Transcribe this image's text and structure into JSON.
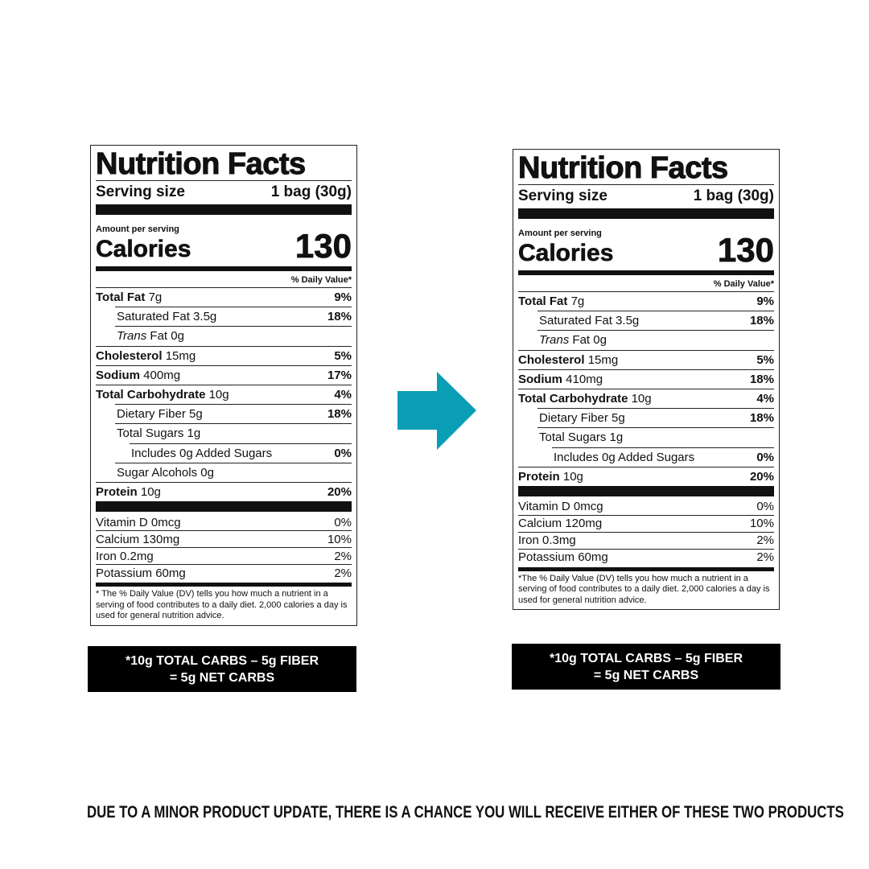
{
  "labels": [
    {
      "title": "Nutrition Facts",
      "serving_label": "Serving size",
      "serving_value": "1 bag (30g)",
      "amount_label": "Amount per serving",
      "calories_label": "Calories",
      "calories_value": "130",
      "dv_header": "% Daily Value*",
      "nutrients": [
        {
          "name": "Total Fat",
          "amount": "7g",
          "dv": "9%"
        },
        {
          "name": "Saturated Fat 3.5g",
          "dv": "18%"
        },
        {
          "name": "Trans",
          "amount": "Fat 0g"
        },
        {
          "name": "Cholesterol",
          "amount": "15mg",
          "dv": "5%"
        },
        {
          "name": "Sodium",
          "amount": "400mg",
          "dv": "17%"
        },
        {
          "name": "Total Carbohydrate",
          "amount": "10g",
          "dv": "4%"
        },
        {
          "name": "Dietary Fiber 5g",
          "dv": "18%"
        },
        {
          "name": "Total Sugars 1g"
        },
        {
          "name": "Includes 0g Added Sugars",
          "dv": "0%"
        },
        {
          "name": "Sugar Alcohols 0g"
        },
        {
          "name": "Protein",
          "amount": "10g",
          "dv": "20%"
        }
      ],
      "vitamins": [
        {
          "name": "Vitamin D 0mcg",
          "dv": "0%"
        },
        {
          "name": "Calcium 130mg",
          "dv": "10%"
        },
        {
          "name": "Iron 0.2mg",
          "dv": "2%"
        },
        {
          "name": "Potassium 60mg",
          "dv": "2%"
        }
      ],
      "footnote": "* The % Daily Value (DV) tells you how much a nutrient in a serving of food contributes to a daily diet. 2,000 calories a day is used for general nutrition advice.",
      "net_carbs": [
        "*10g TOTAL CARBS – 5g FIBER",
        "= 5g NET CARBS"
      ]
    },
    {
      "title": "Nutrition Facts",
      "serving_label": "Serving size",
      "serving_value": "1 bag (30g)",
      "amount_label": "Amount per serving",
      "calories_label": "Calories",
      "calories_value": "130",
      "dv_header": "% Daily Value*",
      "nutrients": [
        {
          "name": "Total Fat",
          "amount": "7g",
          "dv": "9%"
        },
        {
          "name": "Saturated Fat 3.5g",
          "dv": "18%"
        },
        {
          "name": "Trans",
          "amount": "Fat 0g"
        },
        {
          "name": "Cholesterol",
          "amount": "15mg",
          "dv": "5%"
        },
        {
          "name": "Sodium",
          "amount": "410mg",
          "dv": "18%"
        },
        {
          "name": "Total Carbohydrate",
          "amount": "10g",
          "dv": "4%"
        },
        {
          "name": "Dietary Fiber 5g",
          "dv": "18%"
        },
        {
          "name": "Total Sugars 1g"
        },
        {
          "name": "Includes 0g Added Sugars",
          "dv": "0%"
        },
        {
          "name": "Protein",
          "amount": "10g",
          "dv": "20%"
        }
      ],
      "vitamins": [
        {
          "name": "Vitamin D 0mcg",
          "dv": "0%"
        },
        {
          "name": "Calcium 120mg",
          "dv": "10%"
        },
        {
          "name": "Iron 0.3mg",
          "dv": "2%"
        },
        {
          "name": "Potassium 60mg",
          "dv": "2%"
        }
      ],
      "footnote": "*The % Daily Value (DV) tells you how much a nutrient in a serving of food contributes to a daily diet. 2,000 calories a day is used for general nutrition advice.",
      "net_carbs": [
        "*10g TOTAL CARBS – 5g FIBER",
        "= 5g NET CARBS"
      ]
    }
  ],
  "notice": "DUE TO A MINOR PRODUCT UPDATE, THERE IS A CHANCE YOU WILL RECEIVE EITHER OF THESE TWO PRODUCTS"
}
